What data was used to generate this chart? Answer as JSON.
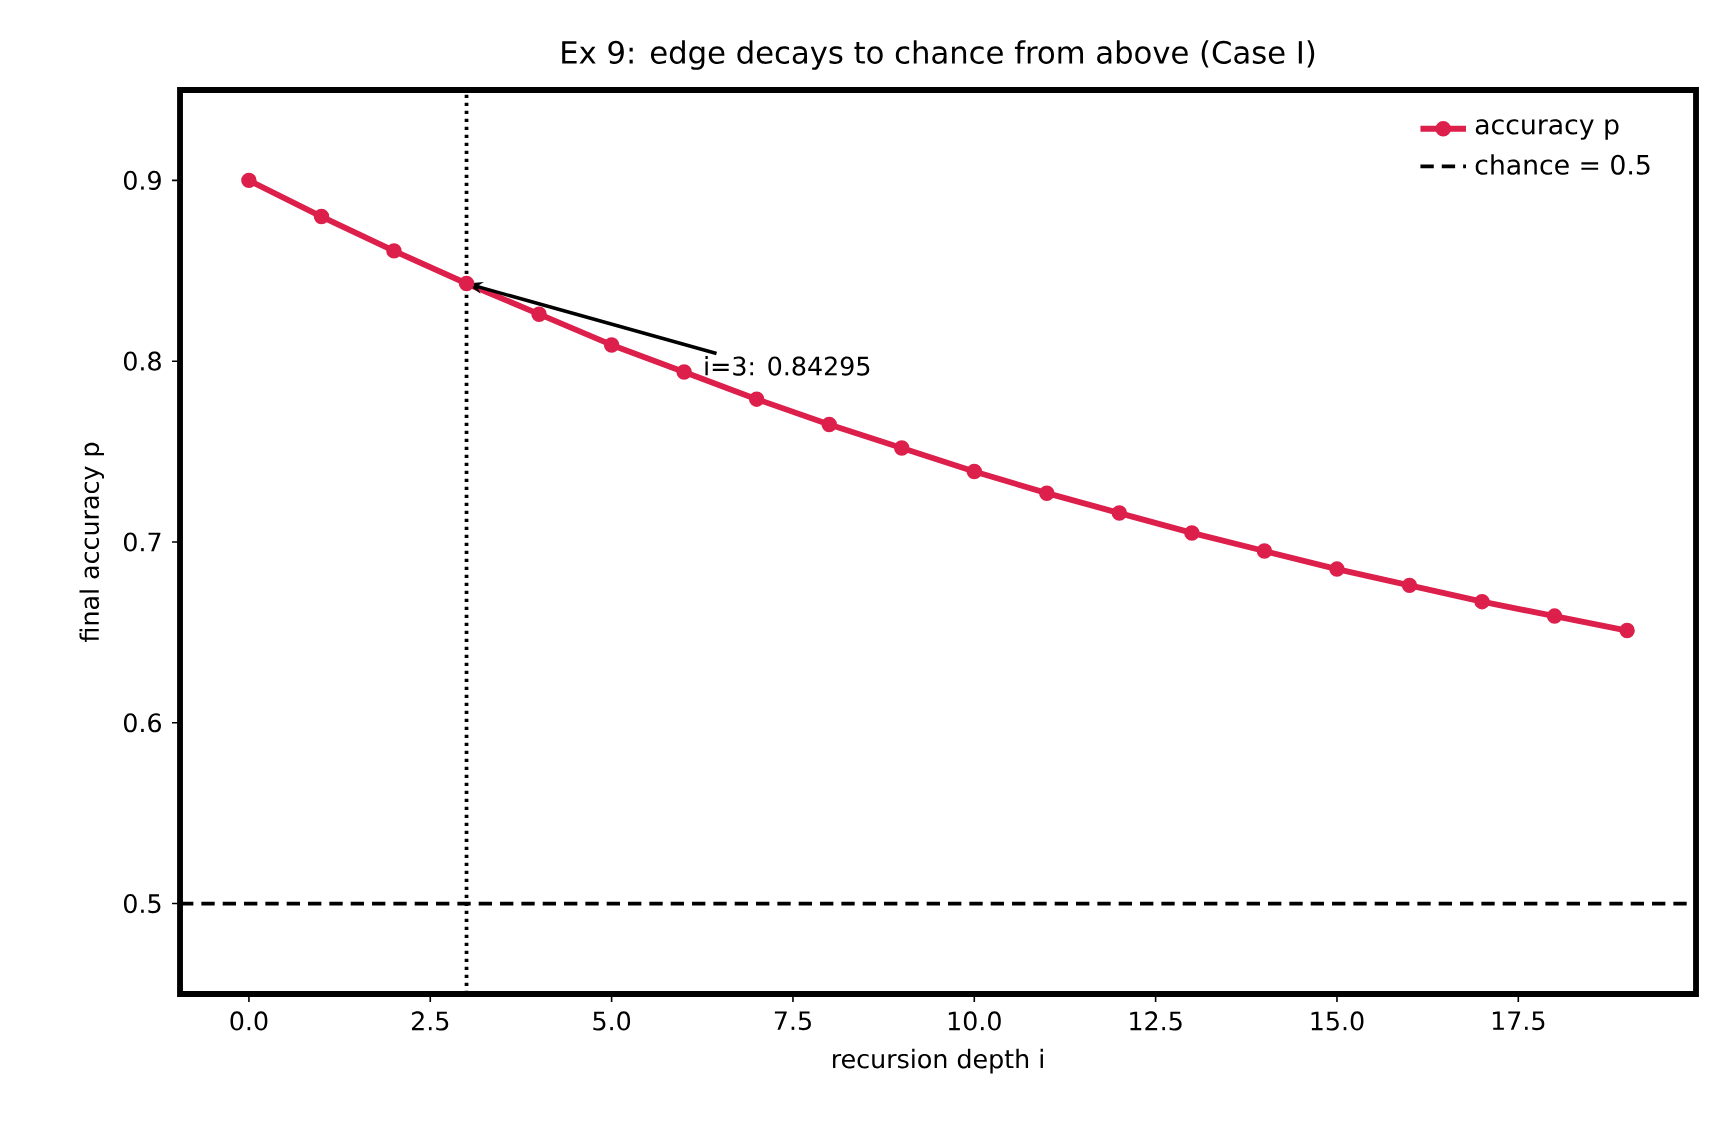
{
  "chart_data": {
    "type": "line",
    "title": "Ex 9: edge decays to chance from above (Case I)",
    "xlabel": "recursion depth i",
    "ylabel": "final accuracy p",
    "x": [
      0,
      1,
      2,
      3,
      4,
      5,
      6,
      7,
      8,
      9,
      10,
      11,
      12,
      13,
      14,
      15,
      16,
      17,
      18,
      19
    ],
    "series": [
      {
        "name": "accuracy p",
        "color": "#dc1f4b",
        "values": [
          0.9,
          0.88,
          0.861,
          0.84295,
          0.826,
          0.809,
          0.794,
          0.779,
          0.765,
          0.752,
          0.739,
          0.727,
          0.716,
          0.705,
          0.695,
          0.685,
          0.676,
          0.667,
          0.659,
          0.651
        ]
      }
    ],
    "marker": "circle",
    "line_style": "solid",
    "legend": "top right",
    "grid": false,
    "xlim": [
      -0.95,
      19.95
    ],
    "ylim": [
      0.45,
      0.95
    ],
    "xticks": [
      {
        "value": 0,
        "label": "0.0"
      },
      {
        "value": 2.5,
        "label": "2.5"
      },
      {
        "value": 5,
        "label": "5.0"
      },
      {
        "value": 7.5,
        "label": "7.5"
      },
      {
        "value": 10,
        "label": "10.0"
      },
      {
        "value": 12.5,
        "label": "12.5"
      },
      {
        "value": 15,
        "label": "15.0"
      },
      {
        "value": 17.5,
        "label": "17.5"
      }
    ],
    "yticks": [
      0.5,
      0.6,
      0.7,
      0.8,
      0.9
    ],
    "ref_lines": [
      {
        "axis": "y",
        "value": 0.5,
        "label": "chance = 0.5",
        "color": "#000000",
        "line_style": "dashed"
      },
      {
        "axis": "x",
        "value": 3,
        "color": "#000000",
        "line_style": "dotted"
      }
    ],
    "annotations": [
      {
        "text": "i=3: 0.84295",
        "x": 3,
        "y": 0.84295
      }
    ]
  }
}
